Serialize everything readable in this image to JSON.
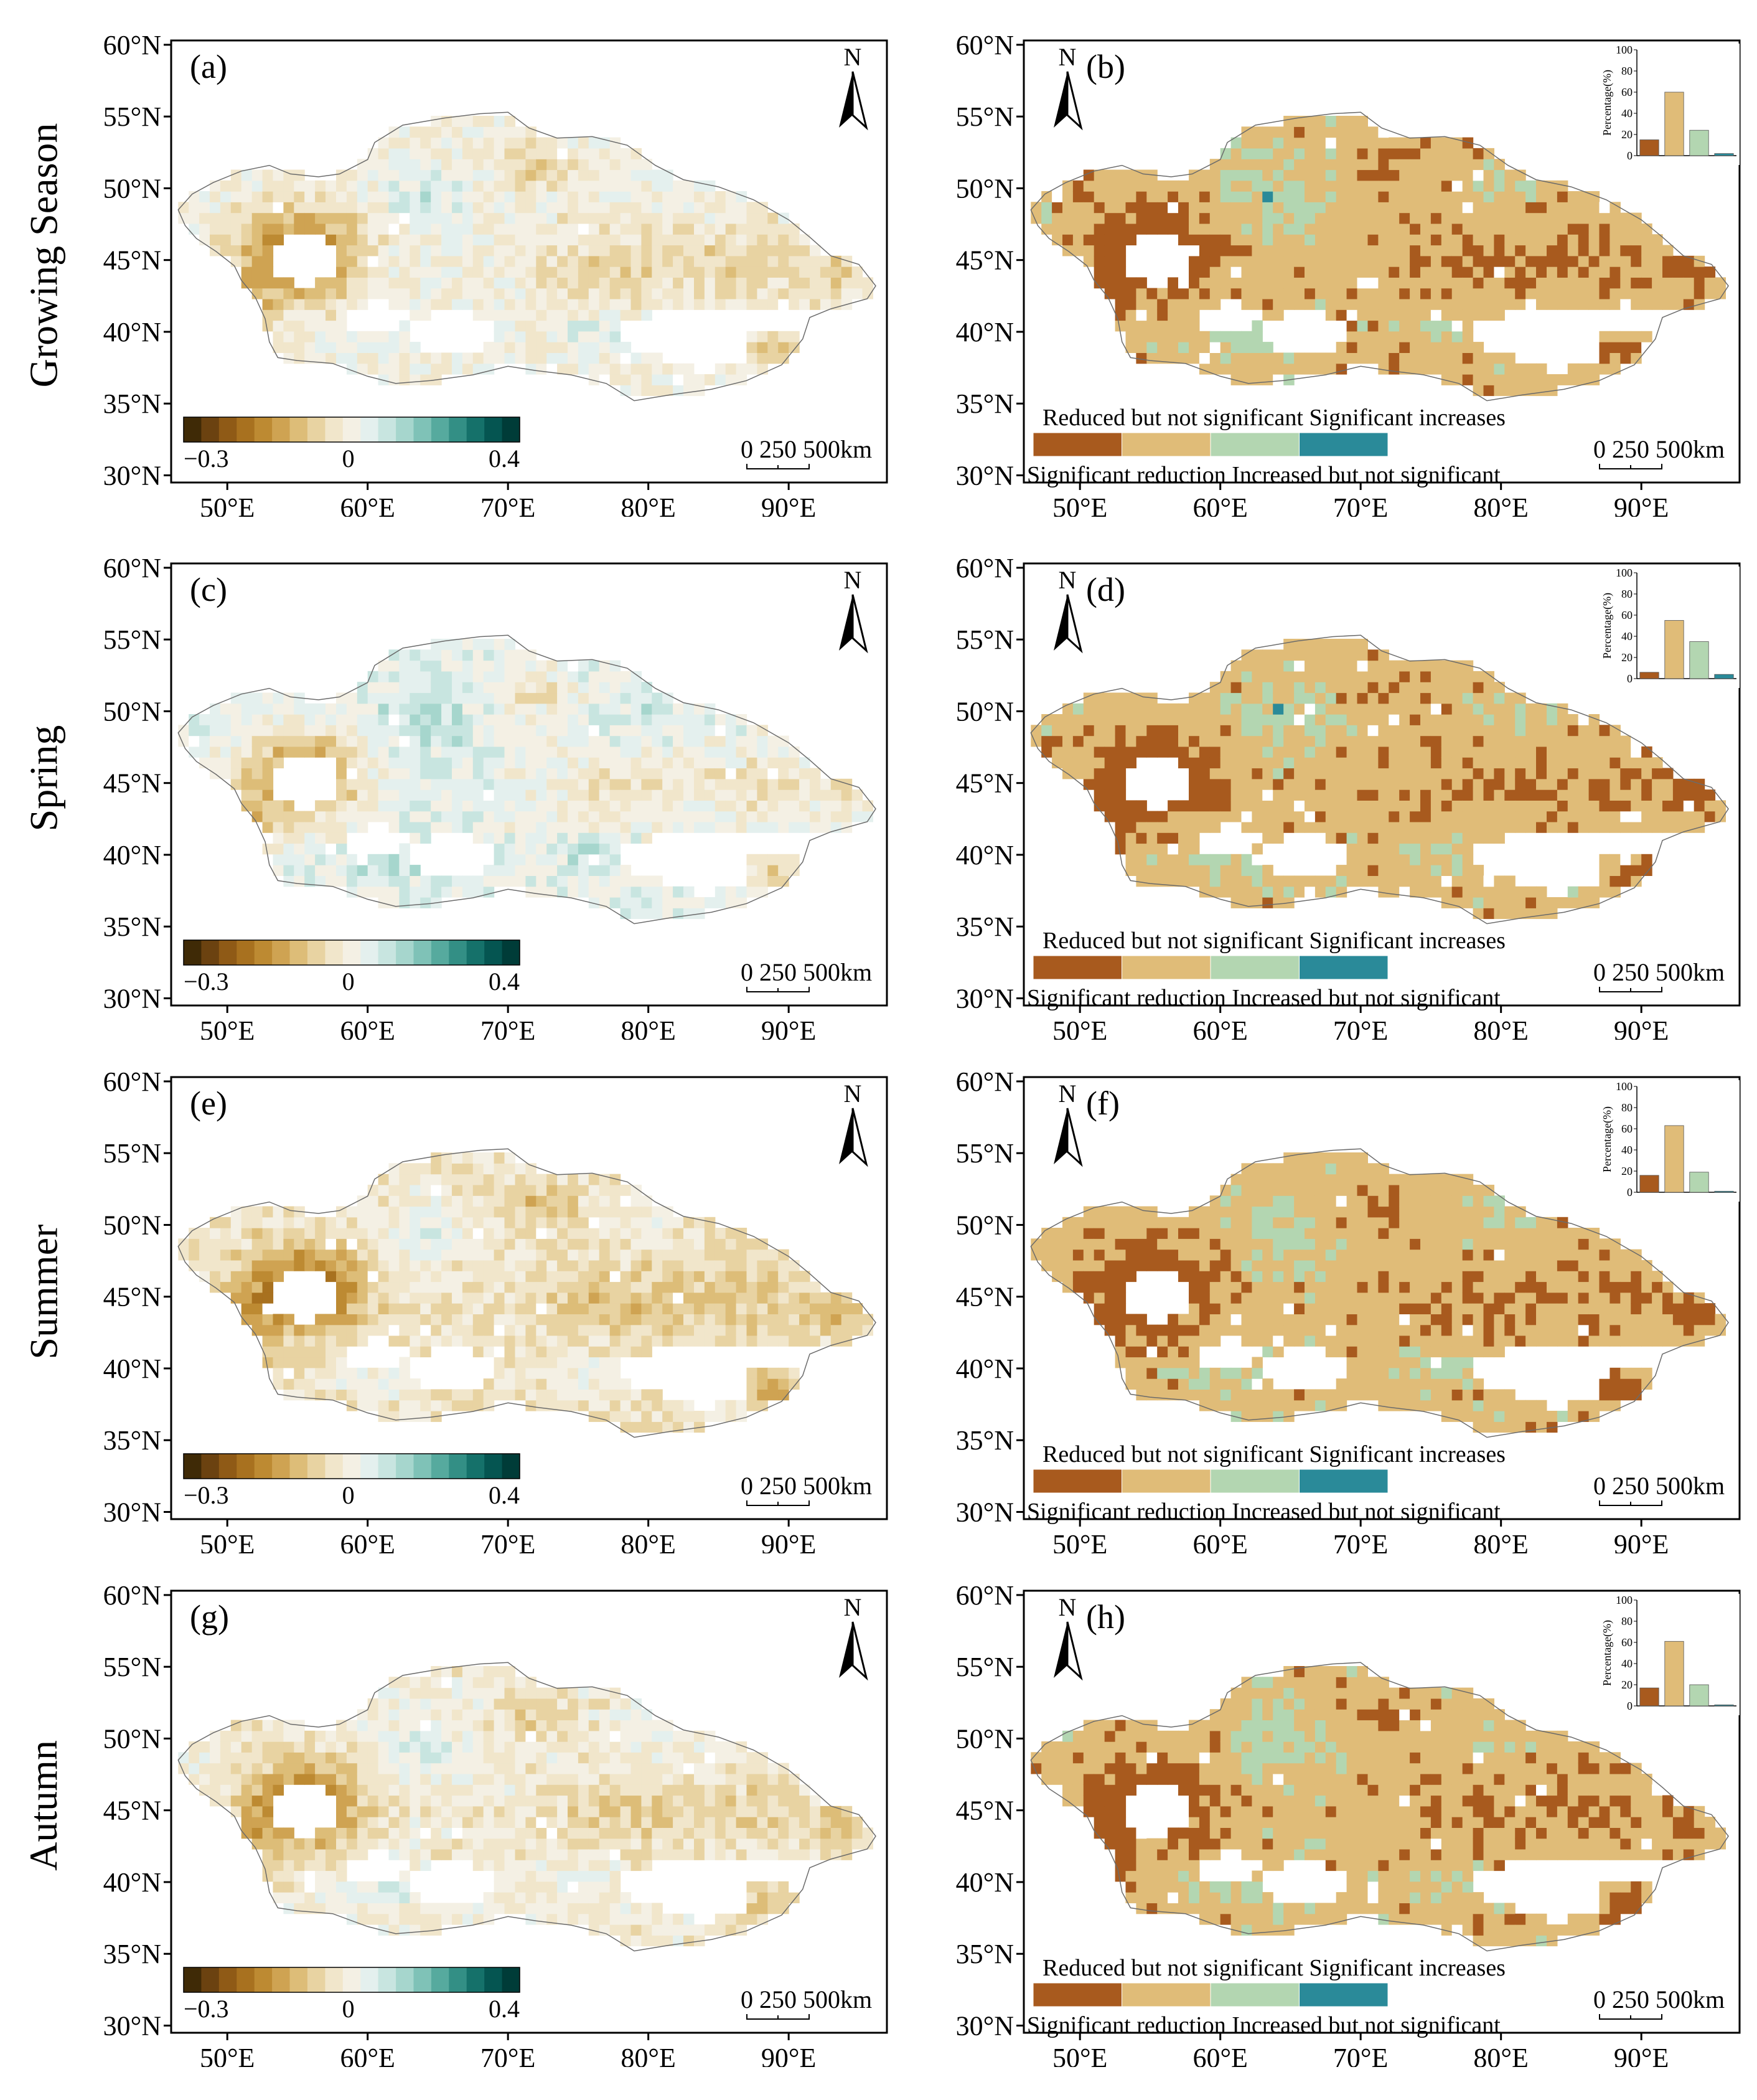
{
  "row_labels": [
    "Growing Season",
    "Spring",
    "Summer",
    "Autumn"
  ],
  "axes": {
    "lat_labels": [
      "60°N",
      "55°N",
      "50°N",
      "45°N",
      "40°N",
      "35°N",
      "30°N"
    ],
    "lon_labels": [
      "50°E",
      "60°E",
      "70°E",
      "80°E",
      "90°E"
    ]
  },
  "colorbar": {
    "min_label": "−0.3",
    "mid_label": "0",
    "max_label": "0.4",
    "colors": [
      "#3f2a06",
      "#6b4210",
      "#8f5a16",
      "#a8711f",
      "#bd8a32",
      "#cfa352",
      "#ddbd78",
      "#e8d3a2",
      "#f1e6cb",
      "#f4f0e4",
      "#e4f0ee",
      "#c8e5e0",
      "#a6d6cd",
      "#7fc2b7",
      "#56aa9e",
      "#338f85",
      "#15716a",
      "#055551",
      "#003c38"
    ]
  },
  "scale_bar": {
    "label": "0 250 500km"
  },
  "north_label": "N",
  "legend": {
    "top_line": "Reduced but not significant Significant increases",
    "bottom_line": "Significant reduction Increased but not significant",
    "colors": [
      "#a85a1e",
      "#e0bc78",
      "#b3d6b1",
      "#2a8a99"
    ]
  },
  "map_colors": {
    "land_base": "#f3ead6",
    "brown_dark": "#9a5a18",
    "brown_mid": "#c89445",
    "tan": "#e2c68c",
    "teal_light": "#cfe7e1",
    "teal_mid": "#8fcabd",
    "teal_dark": "#3f9a8f",
    "outline": "#6b6b6b"
  },
  "inset": {
    "y_label": "Percentage(%)",
    "y_ticks": [
      "100",
      "80",
      "60",
      "40",
      "20",
      "0"
    ]
  },
  "panels": [
    {
      "letter": "(a)",
      "kind": "continuous",
      "season": "Growing Season"
    },
    {
      "letter": "(b)",
      "kind": "categorical",
      "season": "Growing Season"
    },
    {
      "letter": "(c)",
      "kind": "continuous",
      "season": "Spring"
    },
    {
      "letter": "(d)",
      "kind": "categorical",
      "season": "Spring"
    },
    {
      "letter": "(e)",
      "kind": "continuous",
      "season": "Summer"
    },
    {
      "letter": "(f)",
      "kind": "categorical",
      "season": "Summer"
    },
    {
      "letter": "(g)",
      "kind": "continuous",
      "season": "Autumn"
    },
    {
      "letter": "(h)",
      "kind": "categorical",
      "season": "Autumn"
    }
  ],
  "chart_data": [
    {
      "type": "bar",
      "panel": "(b)",
      "categories": [
        "Significant reduction",
        "Reduced but not significant",
        "Increased but not significant",
        "Significant increases"
      ],
      "values": [
        15,
        60,
        24,
        2
      ],
      "ylabel": "Percentage(%)",
      "ylim": [
        0,
        100
      ]
    },
    {
      "type": "bar",
      "panel": "(d)",
      "categories": [
        "Significant reduction",
        "Reduced but not significant",
        "Increased but not significant",
        "Significant increases"
      ],
      "values": [
        6,
        55,
        35,
        4
      ],
      "ylabel": "Percentage(%)",
      "ylim": [
        0,
        100
      ]
    },
    {
      "type": "bar",
      "panel": "(f)",
      "categories": [
        "Significant reduction",
        "Reduced but not significant",
        "Increased but not significant",
        "Significant increases"
      ],
      "values": [
        16,
        63,
        19,
        1
      ],
      "ylabel": "Percentage(%)",
      "ylim": [
        0,
        100
      ]
    },
    {
      "type": "bar",
      "panel": "(h)",
      "categories": [
        "Significant reduction",
        "Reduced but not significant",
        "Increased but not significant",
        "Significant increases"
      ],
      "values": [
        17,
        61,
        20,
        1
      ],
      "ylabel": "Percentage(%)",
      "ylim": [
        0,
        100
      ]
    }
  ]
}
